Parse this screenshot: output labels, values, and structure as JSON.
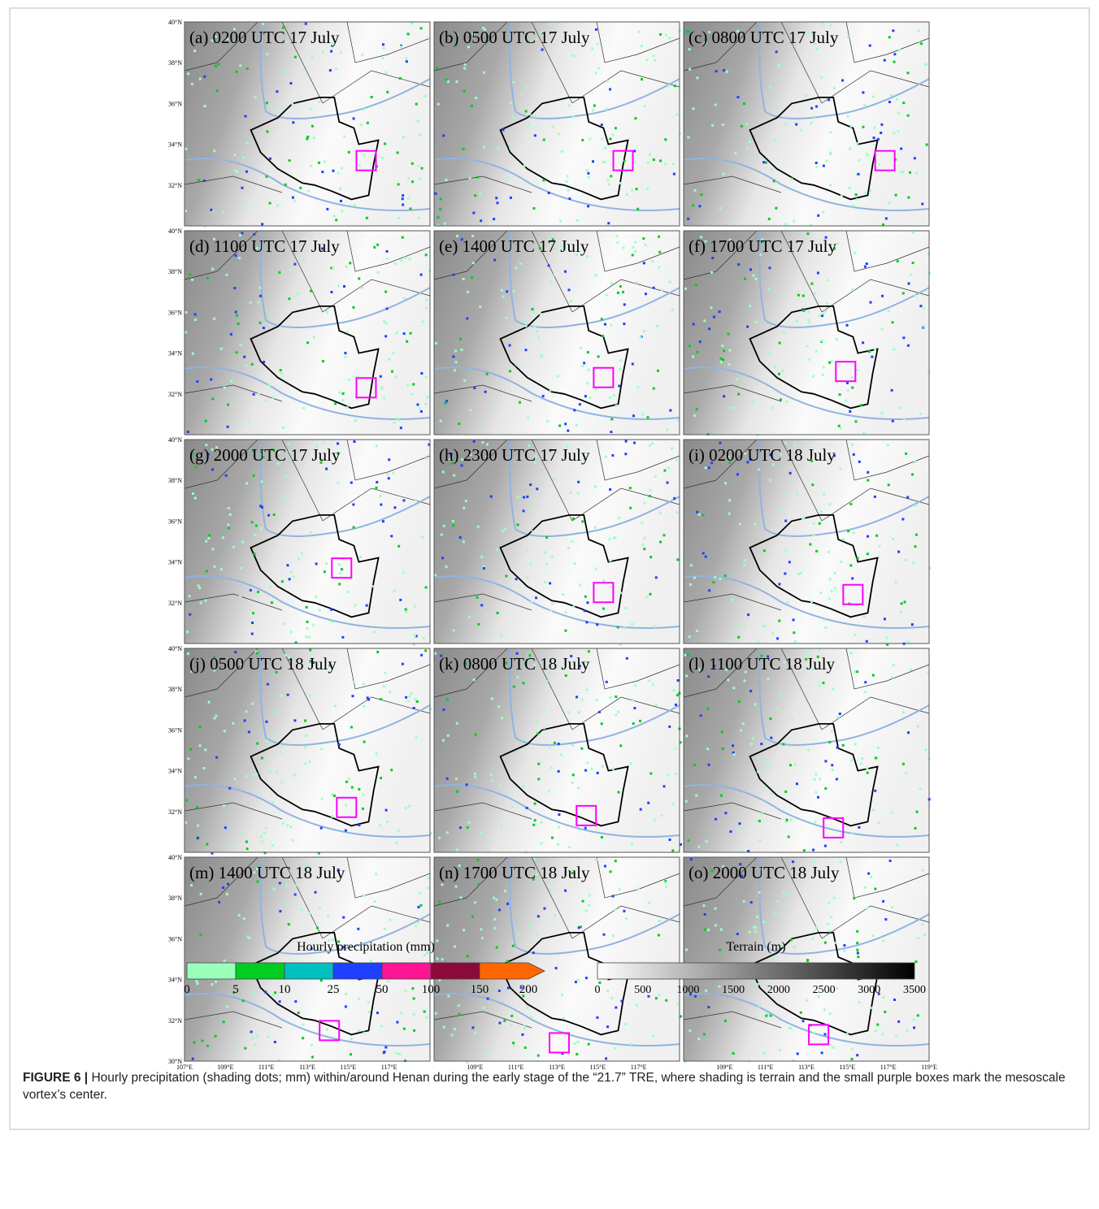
{
  "panels": [
    {
      "label": "(a) 0200 UTC 17 July"
    },
    {
      "label": "(b) 0500 UTC 17 July"
    },
    {
      "label": "(c) 0800 UTC 17 July"
    },
    {
      "label": "(d) 1100 UTC 17 July"
    },
    {
      "label": "(e) 1400 UTC 17 July"
    },
    {
      "label": "(f) 1700 UTC 17 July"
    },
    {
      "label": "(g) 2000 UTC 17 July"
    },
    {
      "label": "(h) 2300 UTC 17 July"
    },
    {
      "label": "(i) 0200 UTC 18 July"
    },
    {
      "label": "(j) 0500 UTC 18 July"
    },
    {
      "label": "(k) 0800 UTC 18 July"
    },
    {
      "label": "(l) 1100 UTC 18 July"
    },
    {
      "label": "(m) 1400 UTC 18 July"
    },
    {
      "label": "(n) 1700 UTC 18 July"
    },
    {
      "label": "(o) 2000 UTC 18 July"
    }
  ],
  "lat_labels": [
    "40°N",
    "38°N",
    "36°N",
    "34°N",
    "32°N",
    "30°N"
  ],
  "lon_labels": [
    [
      "107°E",
      "109°E",
      "111°E",
      "113°E",
      "115°E",
      "117°E"
    ],
    [
      "109°E",
      "111°E",
      "113°E",
      "115°E",
      "117°E"
    ],
    [
      "109°E",
      "111°E",
      "113°E",
      "115°E",
      "117°E",
      "119°E"
    ]
  ],
  "precip_colorbar": {
    "title": "Hourly precipitation (mm)",
    "ticks": [
      0,
      5,
      10,
      25,
      50,
      100,
      150,
      200
    ]
  },
  "terrain_colorbar": {
    "title": "Terrain (m)",
    "ticks": [
      0,
      500,
      1000,
      1500,
      2000,
      2500,
      3000,
      3500
    ]
  },
  "caption": {
    "label": "FIGURE 6 |",
    "text": "Hourly precipitation (shading dots; mm) within/around Henan during the early stage of the “21.7” TRE, where shading is terrain and the small purple boxes mark the mesoscale vortex’s center."
  }
}
